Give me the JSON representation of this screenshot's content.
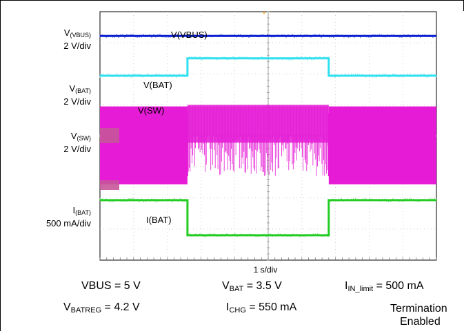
{
  "chart_data": {
    "type": "line",
    "title": "",
    "xlabel": "1 s/div",
    "ylabel": "",
    "grid": true,
    "x_divisions": 10,
    "y_divisions": 8,
    "channels": [
      {
        "name": "V(VBUS)",
        "scale_label": "2 V/div",
        "color": "#0a1fd0",
        "levels": [
          {
            "x_div": [
              0,
              10
            ],
            "div": 7.22
          }
        ]
      },
      {
        "name": "V(BAT)",
        "scale_label": "2 V/div",
        "color": "#2ee0f0",
        "levels": [
          {
            "x_div": [
              0,
              2.6
            ],
            "div": 5.94
          },
          {
            "x_div": [
              2.6,
              6.8
            ],
            "div": 6.5
          },
          {
            "x_div": [
              6.8,
              10
            ],
            "div": 5.94
          }
        ]
      },
      {
        "name": "V(SW)",
        "scale_label": "2 V/div",
        "color": "#e51bd6",
        "levels": [
          {
            "x_div": [
              0,
              2.6
            ],
            "div": [
              2.44,
              4.95
            ]
          },
          {
            "x_div": [
              2.6,
              6.8
            ],
            "div": [
              2.7,
              5.0
            ]
          },
          {
            "x_div": [
              6.8,
              10
            ],
            "div": [
              2.44,
              4.95
            ]
          }
        ]
      },
      {
        "name": "I(BAT)",
        "scale_label": "500 mA/div",
        "color": "#22cc22",
        "levels": [
          {
            "x_div": [
              0,
              2.6
            ],
            "div": 1.93
          },
          {
            "x_div": [
              2.6,
              6.8
            ],
            "div": 0.8
          },
          {
            "x_div": [
              6.8,
              10
            ],
            "div": 1.93
          }
        ]
      }
    ]
  },
  "channel_labels": [
    {
      "main": "V",
      "sub": "(VBUS)",
      "scale": "2 V/div"
    },
    {
      "main": "V",
      "sub": "(BAT)",
      "scale": "2 V/div"
    },
    {
      "main": "V",
      "sub": "(SW)",
      "scale": "2 V/div"
    },
    {
      "main": "I",
      "sub": "(BAT)",
      "scale": "500 mA/div"
    }
  ],
  "trace_labels": [
    "V(VBUS)",
    "V(BAT)",
    "V(SW)",
    "I(BAT)"
  ],
  "timebase": "1 s/div",
  "conditions": {
    "vbus": "VBUS = 5 V",
    "vbat": {
      "main": "V",
      "sub": "BAT",
      "rest": " = 3.5 V"
    },
    "iin": {
      "main": "I",
      "sub": "IN_limit",
      "rest": " = 500 mA"
    },
    "vbatreg": {
      "main": "V",
      "sub": "BATREG",
      "rest": " = 4.2 V"
    },
    "ichg": {
      "main": "I",
      "sub": "CHG",
      "rest": " = 550 mA"
    },
    "termination_line1": "Termination",
    "termination_line2": "Enabled"
  }
}
